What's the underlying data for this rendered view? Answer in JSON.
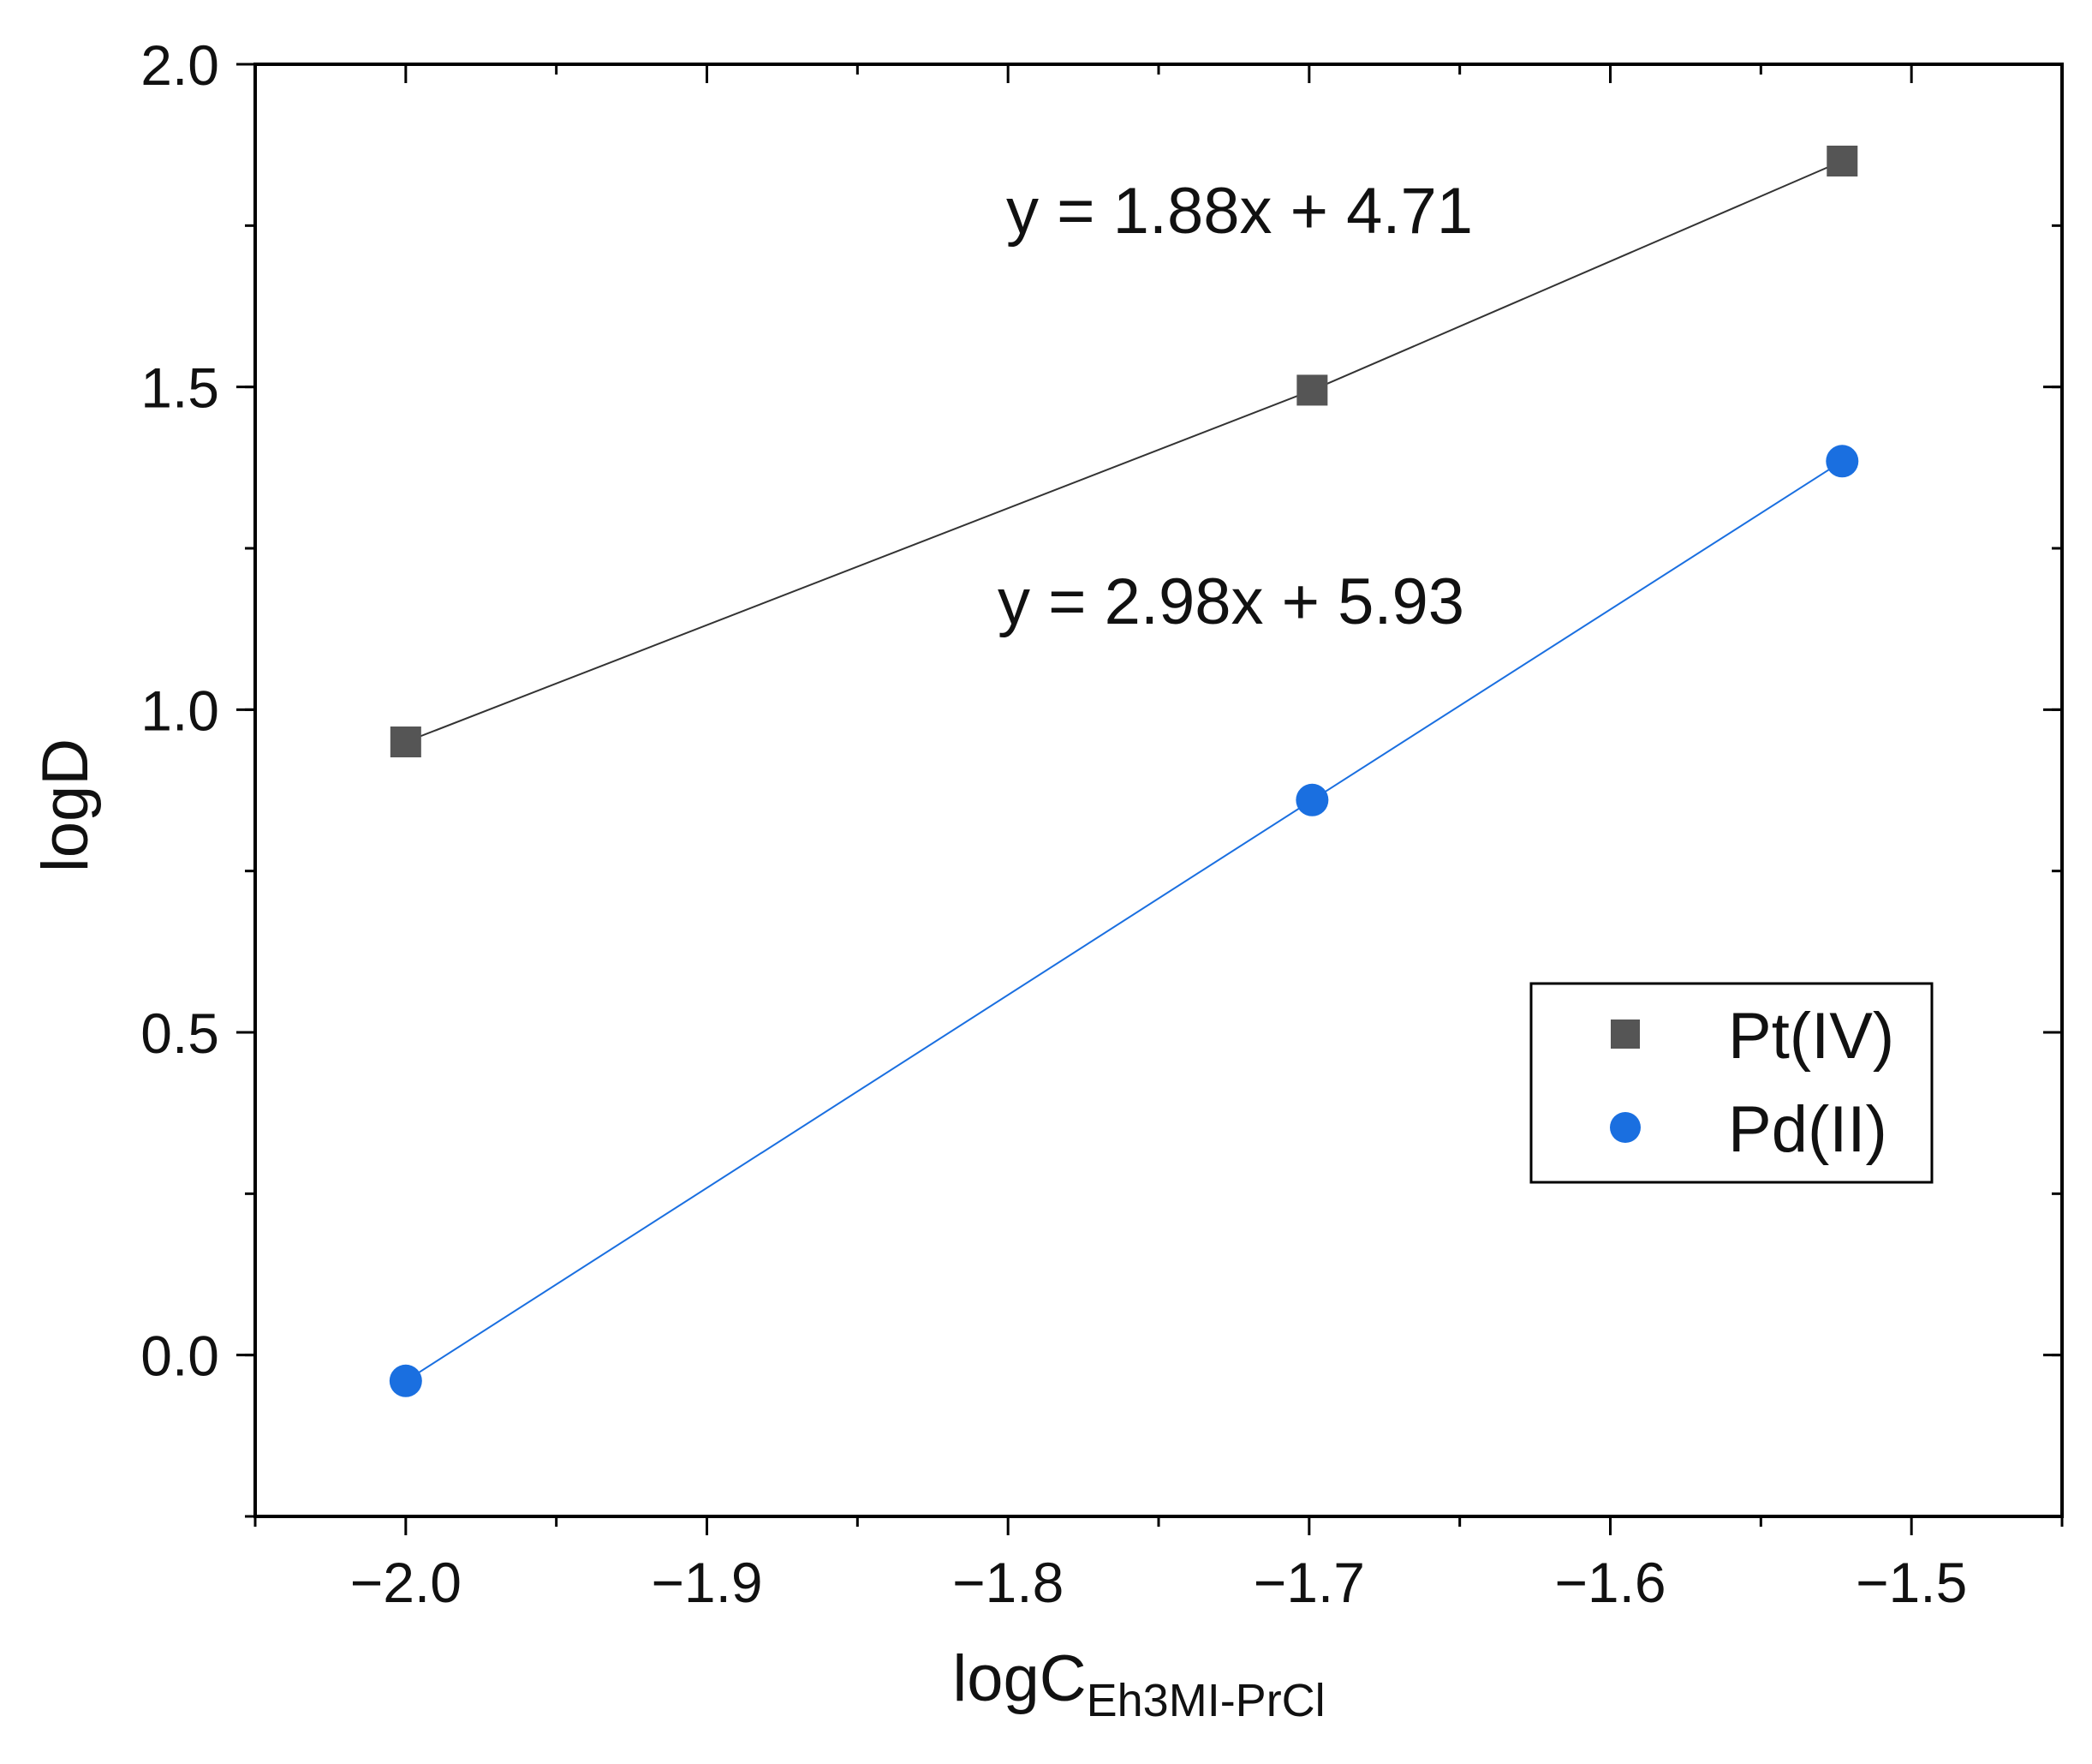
{
  "chart_data": {
    "type": "scatter",
    "title": "",
    "xlabel": {
      "main": "logC",
      "subscript": "Eh3MI-PrCl"
    },
    "ylabel": "logD",
    "xlim": [
      -2.05,
      -1.45
    ],
    "ylim": [
      -0.25,
      2.0
    ],
    "xticks": [
      -2.0,
      -1.9,
      -1.8,
      -1.7,
      -1.6,
      -1.5
    ],
    "xtick_labels": [
      "−2.0",
      "−1.9",
      "−1.8",
      "−1.7",
      "−1.6",
      "−1.5"
    ],
    "yticks": [
      0.0,
      0.5,
      1.0,
      1.5,
      2.0
    ],
    "ytick_labels": [
      "0.0",
      "0.5",
      "1.0",
      "1.5",
      "2.0"
    ],
    "grid": false,
    "legend_position": "right",
    "series": [
      {
        "name": "Pt(IV)",
        "marker": "square",
        "color": "#555555",
        "line_color": "#333333",
        "x": [
          -2.0,
          -1.699,
          -1.523
        ],
        "y": [
          0.95,
          1.495,
          1.85
        ],
        "equation": "y = 1.88x + 4.71"
      },
      {
        "name": "Pd(II)",
        "marker": "circle",
        "color": "#1a6fe0",
        "line_color": "#1a6fe0",
        "x": [
          -2.0,
          -1.699,
          -1.523
        ],
        "y": [
          -0.04,
          0.86,
          1.385
        ],
        "equation": "y = 2.98x + 5.93"
      }
    ]
  }
}
